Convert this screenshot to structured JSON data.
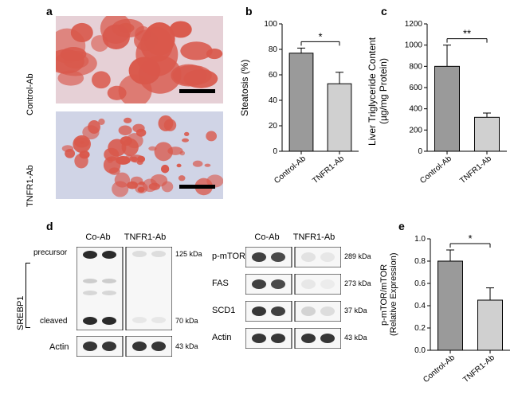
{
  "panel_a": {
    "label": "a",
    "rows": [
      {
        "label": "Control-Ab"
      },
      {
        "label": "TNFR1-Ab"
      }
    ],
    "bg_colors": {
      "top": "#e6d0d6",
      "bottom": "#d0d4e6"
    },
    "blob_color": "#d9584b",
    "scale_bar_color": "#000000"
  },
  "panel_b": {
    "label": "b",
    "ylabel": "Steatosis (%)",
    "ylim": [
      0,
      100
    ],
    "ytick_step": 20,
    "categories": [
      "Control-Ab",
      "TNFR1-Ab"
    ],
    "values": [
      77,
      53
    ],
    "errors": [
      4,
      9
    ],
    "bar_colors": [
      "#9a9a9a",
      "#d0d0d0"
    ],
    "bar_border": "#000000",
    "axis_color": "#000000",
    "sig_label": "*",
    "label_fontsize": 12,
    "tick_fontsize": 10
  },
  "panel_c": {
    "label": "c",
    "ylabel": "Liver Triglyceride Content\n(µg/mg Protein)",
    "ylim": [
      0,
      1200
    ],
    "ytick_step": 200,
    "categories": [
      "Control-Ab",
      "TNFR1-Ab"
    ],
    "values": [
      800,
      320
    ],
    "errors": [
      200,
      40
    ],
    "bar_colors": [
      "#9a9a9a",
      "#d0d0d0"
    ],
    "bar_border": "#000000",
    "axis_color": "#000000",
    "sig_label": "**",
    "label_fontsize": 12,
    "tick_fontsize": 10
  },
  "panel_d": {
    "label": "d",
    "left": {
      "columns": [
        "Co-Ab",
        "TNFR1-Ab"
      ],
      "side_label": "SREBP1",
      "rows": [
        {
          "markers": [
            "precursor",
            "cleaved"
          ],
          "kda": "125 kDa",
          "kda2": "70 kDa",
          "name": "srebp1"
        },
        {
          "label": "Actin",
          "kda": "43 kDa",
          "name": "actin"
        }
      ]
    },
    "right": {
      "columns": [
        "Co-Ab",
        "TNFR1-Ab"
      ],
      "rows": [
        {
          "label": "p-mTOR",
          "kda": "289 kDa"
        },
        {
          "label": "FAS",
          "kda": "273 kDa"
        },
        {
          "label": "SCD1",
          "kda": "37 kDa"
        },
        {
          "label": "Actin",
          "kda": "43 kDa"
        }
      ]
    },
    "band_dark": "#2b2b2b",
    "band_light": "#8f8f8f",
    "blot_bg": "#f7f7f7",
    "blot_border": "#000000"
  },
  "panel_e": {
    "label": "e",
    "ylabel": "p-mTOR/mTOR\n(Relative Expression)",
    "ylim": [
      0,
      1.0
    ],
    "ytick_step": 0.2,
    "categories": [
      "Control-Ab",
      "TNFR1-Ab"
    ],
    "values": [
      0.8,
      0.45
    ],
    "errors": [
      0.1,
      0.11
    ],
    "bar_colors": [
      "#9a9a9a",
      "#d0d0d0"
    ],
    "bar_border": "#000000",
    "axis_color": "#000000",
    "sig_label": "*",
    "label_fontsize": 12,
    "tick_fontsize": 10
  },
  "fontsize": {
    "panel_label": 14,
    "side": 11,
    "blot": 11,
    "kda": 9
  }
}
